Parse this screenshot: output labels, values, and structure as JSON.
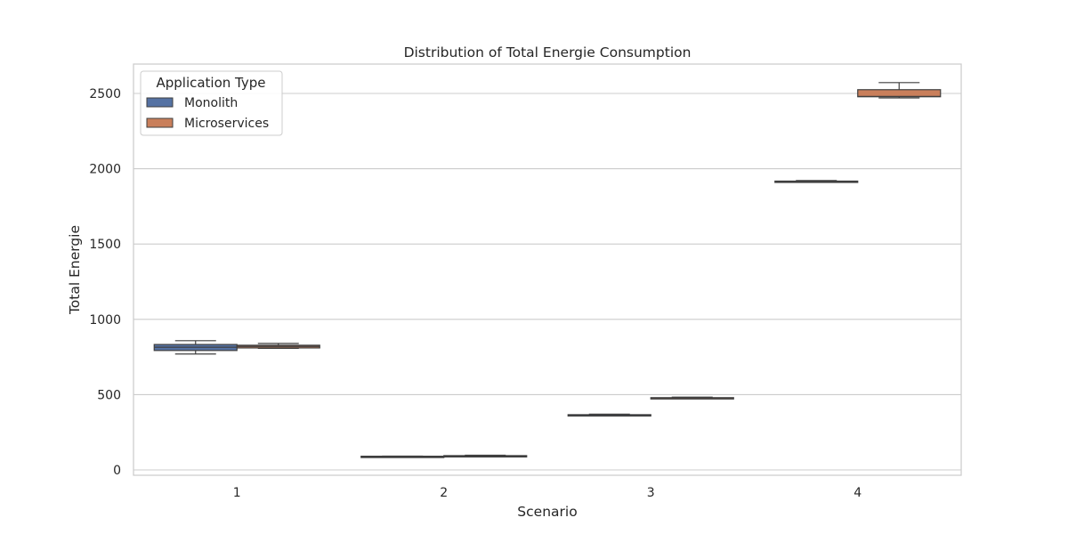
{
  "chart_data": {
    "type": "boxplot",
    "title": "Distribution of Total Energie Consumption",
    "xlabel": "Scenario",
    "ylabel": "Total Energie",
    "categories": [
      "1",
      "2",
      "3",
      "4"
    ],
    "yticks": [
      0,
      500,
      1000,
      1500,
      2000,
      2500
    ],
    "ylim": [
      -30,
      2700
    ],
    "grid": "horizontal",
    "legend": {
      "title": "Application Type",
      "placement": "top-left"
    },
    "series": [
      {
        "name": "Monolith",
        "color": "#5572a3",
        "boxes": [
          {
            "whisker_low": 770,
            "q1": 793,
            "median": 815,
            "q3": 833,
            "whisker_high": 858
          },
          {
            "whisker_low": 87,
            "q1": 88,
            "median": 89,
            "q3": 91,
            "whisker_high": 92
          },
          {
            "whisker_low": 360,
            "q1": 363,
            "median": 365,
            "q3": 367,
            "whisker_high": 370
          },
          {
            "whisker_low": 1910,
            "q1": 1913,
            "median": 1915,
            "q3": 1918,
            "whisker_high": 1922
          }
        ]
      },
      {
        "name": "Microservices",
        "color": "#c97f5b",
        "boxes": [
          {
            "whisker_low": 807,
            "q1": 810,
            "median": 820,
            "q3": 828,
            "whisker_high": 840
          },
          {
            "whisker_low": 88,
            "q1": 90,
            "median": 92,
            "q3": 95,
            "whisker_high": 98
          },
          {
            "whisker_low": 475,
            "q1": 477,
            "median": 478,
            "q3": 480,
            "whisker_high": 483
          },
          {
            "whisker_low": 2470,
            "q1": 2478,
            "median": 2480,
            "q3": 2525,
            "whisker_high": 2572
          }
        ]
      }
    ]
  }
}
